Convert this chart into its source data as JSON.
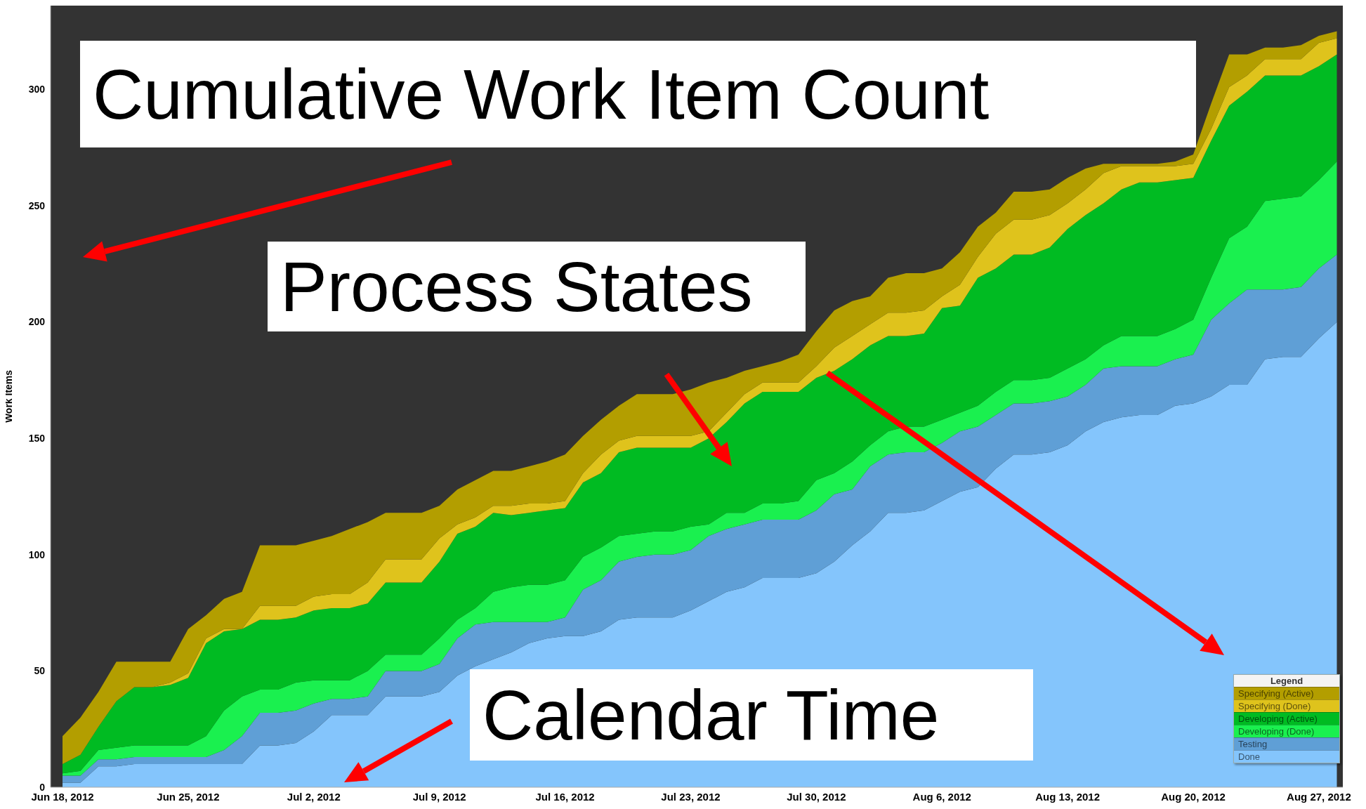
{
  "chart_data": {
    "type": "area",
    "stacked": true,
    "ylabel": "Work Items",
    "legend_title": "Legend",
    "legend": "bottom right",
    "annotations": [
      "Cumulative Work Item Count",
      "Process States",
      "Calendar Time"
    ],
    "xlim": [
      "2012-06-17T08:00",
      "2012-08-28T08:00"
    ],
    "xticks": [
      {
        "value": "2012-06-18",
        "label": "Jun 18, 2012"
      },
      {
        "value": "2012-06-25",
        "label": "Jun 25, 2012"
      },
      {
        "value": "2012-07-02",
        "label": "Jul 2, 2012"
      },
      {
        "value": "2012-07-09",
        "label": "Jul 9, 2012"
      },
      {
        "value": "2012-07-16",
        "label": "Jul 16, 2012"
      },
      {
        "value": "2012-07-23",
        "label": "Jul 23, 2012"
      },
      {
        "value": "2012-07-30",
        "label": "Jul 30, 2012"
      },
      {
        "value": "2012-08-06",
        "label": "Aug 6, 2012"
      },
      {
        "value": "2012-08-13",
        "label": "Aug 13, 2012"
      },
      {
        "value": "2012-08-20",
        "label": "Aug 20, 2012"
      },
      {
        "value": "2012-08-27",
        "label": "Aug 27, 2012"
      }
    ],
    "ylim": [
      0,
      336
    ],
    "yticks": [
      0,
      50,
      100,
      150,
      200,
      250,
      300
    ],
    "x": [
      "2012-06-18",
      "2012-06-19",
      "2012-06-20",
      "2012-06-21",
      "2012-06-22",
      "2012-06-23",
      "2012-06-24",
      "2012-06-25",
      "2012-06-26",
      "2012-06-27",
      "2012-06-28",
      "2012-06-29",
      "2012-06-30",
      "2012-07-01",
      "2012-07-02",
      "2012-07-03",
      "2012-07-04",
      "2012-07-05",
      "2012-07-06",
      "2012-07-07",
      "2012-07-08",
      "2012-07-09",
      "2012-07-10",
      "2012-07-11",
      "2012-07-12",
      "2012-07-13",
      "2012-07-14",
      "2012-07-15",
      "2012-07-16",
      "2012-07-17",
      "2012-07-18",
      "2012-07-19",
      "2012-07-20",
      "2012-07-21",
      "2012-07-22",
      "2012-07-23",
      "2012-07-24",
      "2012-07-25",
      "2012-07-26",
      "2012-07-27",
      "2012-07-28",
      "2012-07-29",
      "2012-07-30",
      "2012-07-31",
      "2012-08-01",
      "2012-08-02",
      "2012-08-03",
      "2012-08-04",
      "2012-08-05",
      "2012-08-06",
      "2012-08-07",
      "2012-08-08",
      "2012-08-09",
      "2012-08-10",
      "2012-08-11",
      "2012-08-12",
      "2012-08-13",
      "2012-08-14",
      "2012-08-15",
      "2012-08-16",
      "2012-08-17",
      "2012-08-18",
      "2012-08-19",
      "2012-08-20",
      "2012-08-21",
      "2012-08-22",
      "2012-08-23",
      "2012-08-24",
      "2012-08-25",
      "2012-08-26",
      "2012-08-27",
      "2012-08-28"
    ],
    "series": [
      {
        "name": "Done",
        "color": "#84c5fc",
        "values": [
          2,
          2,
          9,
          9,
          10,
          10,
          10,
          10,
          10,
          10,
          10,
          18,
          18,
          19,
          24,
          31,
          31,
          31,
          39,
          39,
          39,
          41,
          48,
          52,
          55,
          58,
          62,
          64,
          65,
          65,
          67,
          72,
          73,
          73,
          73,
          76,
          80,
          84,
          86,
          90,
          90,
          90,
          92,
          97,
          104,
          110,
          118,
          118,
          119,
          123,
          127,
          129,
          137,
          143,
          143,
          144,
          147,
          153,
          157,
          159,
          160,
          160,
          164,
          165,
          168,
          173,
          173,
          184,
          185,
          185,
          193,
          200
        ]
      },
      {
        "name": "Testing",
        "color": "#5f9fd6",
        "values": [
          3,
          3,
          3,
          3,
          3,
          3,
          3,
          3,
          3,
          6,
          12,
          14,
          14,
          14,
          12,
          7,
          7,
          8,
          11,
          11,
          11,
          12,
          16,
          18,
          16,
          13,
          9,
          7,
          8,
          20,
          22,
          25,
          26,
          27,
          27,
          26,
          28,
          27,
          27,
          25,
          25,
          25,
          27,
          29,
          24,
          28,
          25,
          26,
          25,
          25,
          26,
          26,
          23,
          22,
          22,
          22,
          21,
          20,
          23,
          22,
          21,
          21,
          20,
          21,
          33,
          35,
          41,
          30,
          29,
          30,
          30,
          29
        ]
      },
      {
        "name": "Developing (Done)",
        "color": "#1af04f",
        "values": [
          1,
          2,
          4,
          5,
          5,
          5,
          5,
          5,
          9,
          17,
          17,
          10,
          10,
          12,
          10,
          8,
          8,
          11,
          7,
          7,
          7,
          11,
          8,
          7,
          13,
          15,
          16,
          16,
          16,
          14,
          14,
          11,
          10,
          10,
          10,
          10,
          5,
          7,
          5,
          7,
          7,
          8,
          13,
          9,
          12,
          9,
          10,
          11,
          11,
          10,
          8,
          9,
          10,
          10,
          10,
          10,
          12,
          11,
          10,
          13,
          13,
          13,
          13,
          15,
          18,
          28,
          27,
          38,
          39,
          39,
          38,
          40
        ]
      },
      {
        "name": "Developing (Active)",
        "color": "#00bb22",
        "values": [
          4,
          7,
          10,
          20,
          25,
          25,
          26,
          29,
          40,
          34,
          29,
          30,
          30,
          28,
          30,
          31,
          31,
          29,
          31,
          31,
          31,
          33,
          37,
          35,
          34,
          31,
          31,
          32,
          31,
          32,
          32,
          36,
          37,
          36,
          36,
          34,
          37,
          39,
          47,
          48,
          48,
          47,
          44,
          44,
          44,
          43,
          41,
          39,
          40,
          48,
          46,
          55,
          53,
          54,
          54,
          56,
          60,
          62,
          61,
          63,
          66,
          66,
          64,
          61,
          59,
          57,
          58,
          54,
          53,
          52,
          49,
          46
        ]
      },
      {
        "name": "Specifying (Done)",
        "color": "#dfc31c",
        "values": [
          0,
          0,
          0,
          0,
          0,
          0,
          1,
          2,
          2,
          1,
          0,
          6,
          6,
          5,
          6,
          6,
          6,
          9,
          10,
          10,
          10,
          10,
          4,
          4,
          3,
          4,
          4,
          3,
          3,
          4,
          8,
          5,
          5,
          5,
          5,
          5,
          3,
          4,
          4,
          4,
          4,
          4,
          5,
          10,
          10,
          9,
          10,
          10,
          10,
          5,
          9,
          9,
          15,
          15,
          15,
          14,
          11,
          11,
          13,
          10,
          7,
          7,
          6,
          6,
          5,
          8,
          7,
          7,
          7,
          7,
          10,
          7
        ]
      },
      {
        "name": "Specifying (Active)",
        "color": "#b39e00",
        "values": [
          12,
          16,
          15,
          17,
          11,
          11,
          9,
          19,
          10,
          13,
          16,
          26,
          26,
          26,
          24,
          25,
          28,
          26,
          20,
          20,
          20,
          14,
          15,
          16,
          15,
          15,
          16,
          18,
          20,
          16,
          15,
          15,
          18,
          18,
          18,
          20,
          21,
          15,
          10,
          7,
          9,
          12,
          15,
          16,
          15,
          12,
          15,
          17,
          16,
          12,
          14,
          13,
          9,
          12,
          12,
          11,
          11,
          9,
          4,
          1,
          1,
          1,
          2,
          4,
          11,
          14,
          9,
          5,
          5,
          6,
          3,
          3
        ]
      }
    ]
  }
}
